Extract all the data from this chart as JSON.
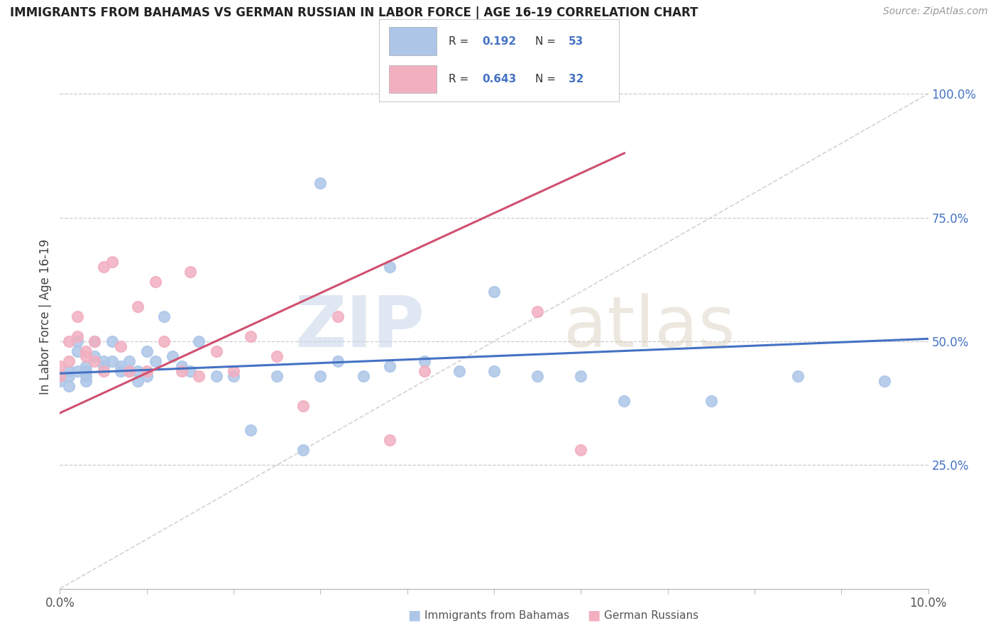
{
  "title": "IMMIGRANTS FROM BAHAMAS VS GERMAN RUSSIAN IN LABOR FORCE | AGE 16-19 CORRELATION CHART",
  "source": "Source: ZipAtlas.com",
  "ylabel": "In Labor Force | Age 16-19",
  "xlim": [
    0.0,
    0.1
  ],
  "ylim": [
    0.0,
    1.1
  ],
  "legend_R1": "0.192",
  "legend_N1": "53",
  "legend_R2": "0.643",
  "legend_N2": "32",
  "color_bahamas": "#adc6e8",
  "color_german": "#f2afc0",
  "color_line_bahamas": "#4472c4",
  "color_line_german": "#d05070",
  "color_diag": "#c8c8c8",
  "color_title": "#222222",
  "color_source": "#999999",
  "color_tick_right": "#4472c4",
  "bahamas_x": [
    0.0,
    0.0,
    0.001,
    0.001,
    0.001,
    0.002,
    0.002,
    0.002,
    0.003,
    0.003,
    0.003,
    0.003,
    0.004,
    0.004,
    0.005,
    0.005,
    0.006,
    0.006,
    0.007,
    0.007,
    0.008,
    0.008,
    0.009,
    0.009,
    0.01,
    0.01,
    0.011,
    0.012,
    0.013,
    0.014,
    0.015,
    0.016,
    0.018,
    0.02,
    0.022,
    0.025,
    0.028,
    0.03,
    0.032,
    0.035,
    0.038,
    0.042,
    0.046,
    0.05,
    0.055,
    0.06,
    0.065,
    0.075,
    0.085,
    0.095,
    0.03,
    0.038,
    0.05
  ],
  "bahamas_y": [
    0.43,
    0.42,
    0.44,
    0.43,
    0.41,
    0.5,
    0.48,
    0.44,
    0.45,
    0.44,
    0.43,
    0.42,
    0.5,
    0.47,
    0.46,
    0.45,
    0.5,
    0.46,
    0.45,
    0.44,
    0.46,
    0.44,
    0.44,
    0.42,
    0.48,
    0.43,
    0.46,
    0.55,
    0.47,
    0.45,
    0.44,
    0.5,
    0.43,
    0.43,
    0.32,
    0.43,
    0.28,
    0.43,
    0.46,
    0.43,
    0.45,
    0.46,
    0.44,
    0.44,
    0.43,
    0.43,
    0.38,
    0.38,
    0.43,
    0.42,
    0.82,
    0.65,
    0.6
  ],
  "german_x": [
    0.0,
    0.0,
    0.001,
    0.001,
    0.002,
    0.002,
    0.003,
    0.003,
    0.004,
    0.004,
    0.005,
    0.005,
    0.006,
    0.007,
    0.008,
    0.009,
    0.01,
    0.011,
    0.012,
    0.014,
    0.015,
    0.016,
    0.018,
    0.02,
    0.022,
    0.025,
    0.028,
    0.032,
    0.038,
    0.042,
    0.055,
    0.06
  ],
  "german_y": [
    0.43,
    0.45,
    0.46,
    0.5,
    0.51,
    0.55,
    0.48,
    0.47,
    0.5,
    0.46,
    0.44,
    0.65,
    0.66,
    0.49,
    0.44,
    0.57,
    0.44,
    0.62,
    0.5,
    0.44,
    0.64,
    0.43,
    0.48,
    0.44,
    0.51,
    0.47,
    0.37,
    0.55,
    0.3,
    0.44,
    0.56,
    0.28
  ],
  "line1_x0": 0.0,
  "line1_x1": 0.1,
  "line1_y0": 0.435,
  "line1_y1": 0.505,
  "line2_x0": 0.0,
  "line2_x1": 0.065,
  "line2_y0": 0.355,
  "line2_y1": 0.88
}
